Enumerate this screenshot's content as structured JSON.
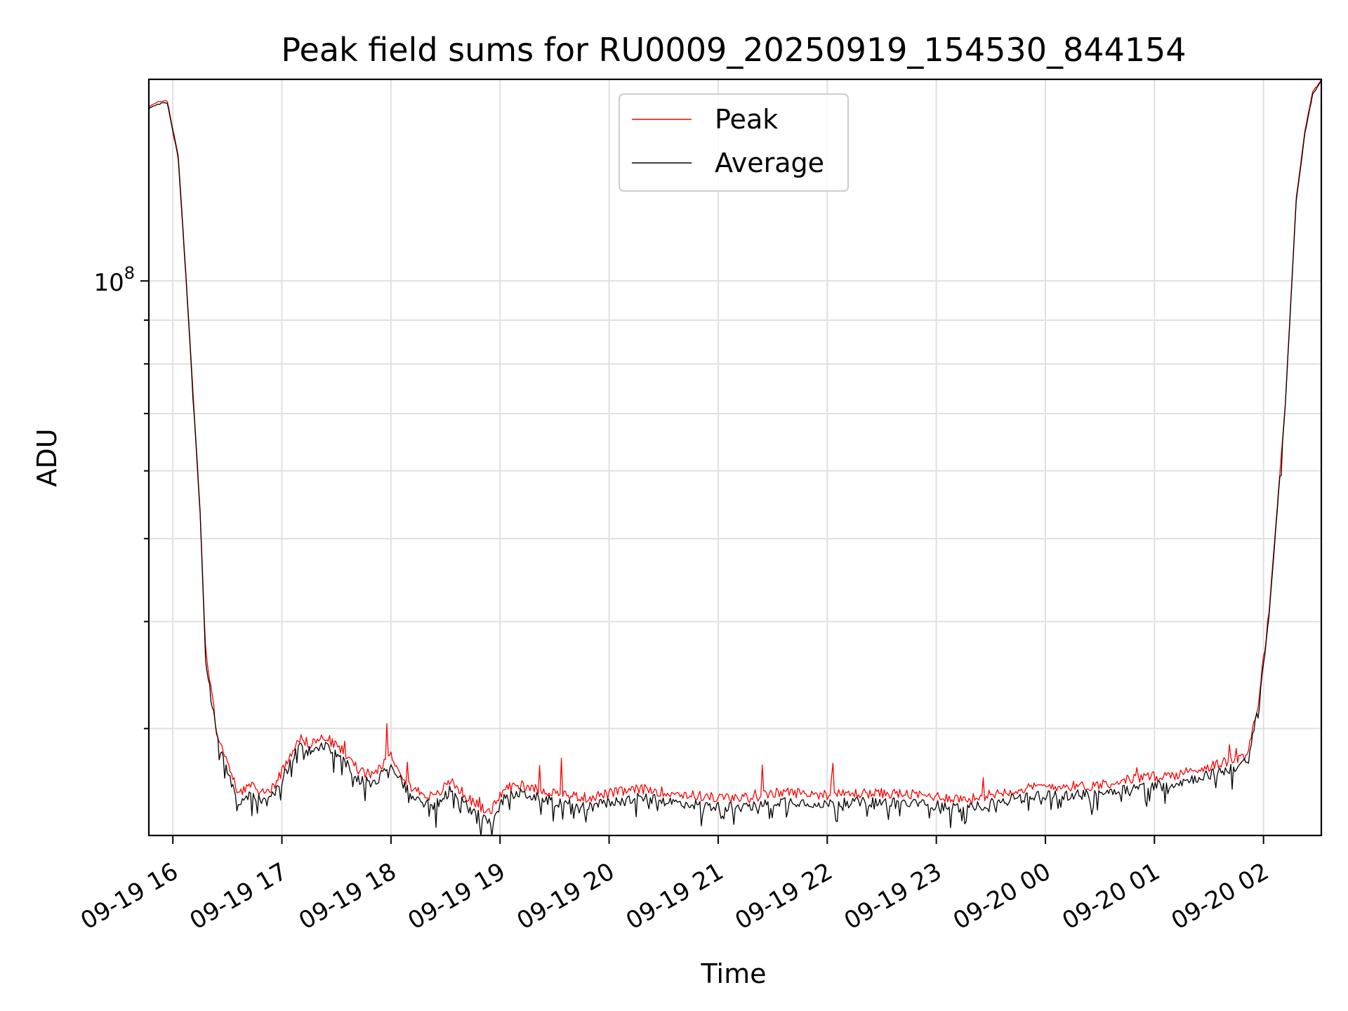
{
  "chart_data": {
    "type": "line",
    "title": "Peak field sums for RU0009_20250919_154530_844154",
    "xlabel": "Time",
    "ylabel": "ADU",
    "yscale": "log",
    "grid": true,
    "legend_position": "top-center",
    "x_range_hours": [
      -0.22,
      10.53
    ],
    "ylim": [
      22500000,
      172000000
    ],
    "x_ticks": [
      {
        "hour": 0,
        "label": "09-19 16"
      },
      {
        "hour": 1,
        "label": "09-19 17"
      },
      {
        "hour": 2,
        "label": "09-19 18"
      },
      {
        "hour": 3,
        "label": "09-19 19"
      },
      {
        "hour": 4,
        "label": "09-19 20"
      },
      {
        "hour": 5,
        "label": "09-19 21"
      },
      {
        "hour": 6,
        "label": "09-19 22"
      },
      {
        "hour": 7,
        "label": "09-19 23"
      },
      {
        "hour": 8,
        "label": "09-20 00"
      },
      {
        "hour": 9,
        "label": "09-20 01"
      },
      {
        "hour": 10,
        "label": "09-20 02"
      }
    ],
    "y_major_ticks": [
      {
        "value": 100000000,
        "base": "10",
        "exponent": "8"
      }
    ],
    "y_minor_ticks": [
      30000000,
      40000000,
      50000000,
      60000000,
      70000000,
      80000000,
      90000000
    ],
    "series": [
      {
        "name": "Peak",
        "color": "#ff0000",
        "x_hours": [
          -0.22,
          -0.12,
          -0.08,
          -0.05,
          0.05,
          0.12,
          0.25,
          0.3,
          0.4,
          0.5,
          0.6,
          0.7,
          0.85,
          0.95,
          1.05,
          1.15,
          1.25,
          1.4,
          1.55,
          1.7,
          1.85,
          2.0,
          2.1,
          2.2,
          2.4,
          2.55,
          2.7,
          2.9,
          3.05,
          3.2,
          3.4,
          3.6,
          3.8,
          4.0,
          4.3,
          4.6,
          5.0,
          5.3,
          5.6,
          6.0,
          6.3,
          6.6,
          7.0,
          7.3,
          7.6,
          8.0,
          8.4,
          8.8,
          9.2,
          9.5,
          9.7,
          9.85,
          9.95,
          10.05,
          10.2,
          10.3,
          10.38,
          10.45,
          10.53
        ],
        "y": [
          160000000,
          162000000,
          162500000,
          162000000,
          140000000,
          102000000,
          54000000,
          37000000,
          30000000,
          27200000,
          25300000,
          25700000,
          25200000,
          26000000,
          27500000,
          29300000,
          28800000,
          29300000,
          28300000,
          26800000,
          26400000,
          28000000,
          26600000,
          25500000,
          24900000,
          26100000,
          24900000,
          23900000,
          25600000,
          25800000,
          25400000,
          25100000,
          24900000,
          25200000,
          25500000,
          25200000,
          24900000,
          24900000,
          25300000,
          25100000,
          25200000,
          25200000,
          25000000,
          24800000,
          25300000,
          25700000,
          25700000,
          26200000,
          26500000,
          27100000,
          27500000,
          28000000,
          32000000,
          41000000,
          72000000,
          125000000,
          150000000,
          166000000,
          172000000
        ]
      },
      {
        "name": "Average",
        "color": "#000000",
        "x_hours": [
          -0.22,
          -0.12,
          -0.08,
          -0.05,
          0.05,
          0.12,
          0.25,
          0.3,
          0.4,
          0.5,
          0.6,
          0.7,
          0.85,
          0.95,
          1.05,
          1.15,
          1.25,
          1.4,
          1.55,
          1.7,
          1.85,
          2.0,
          2.1,
          2.2,
          2.4,
          2.55,
          2.7,
          2.9,
          3.05,
          3.2,
          3.4,
          3.6,
          3.8,
          4.0,
          4.3,
          4.6,
          5.0,
          5.3,
          5.6,
          6.0,
          6.3,
          6.6,
          7.0,
          7.3,
          7.6,
          8.0,
          8.4,
          8.8,
          9.2,
          9.5,
          9.7,
          9.85,
          9.95,
          10.05,
          10.2,
          10.3,
          10.38,
          10.45,
          10.53
        ],
        "y": [
          159000000,
          161000000,
          161500000,
          161000000,
          139000000,
          101000000,
          53500000,
          36500000,
          29500000,
          26600000,
          24700000,
          25100000,
          24600000,
          25400000,
          26900000,
          28700000,
          28200000,
          28700000,
          27700000,
          26200000,
          25800000,
          27400000,
          26000000,
          24900000,
          24300000,
          25500000,
          24300000,
          23300000,
          25000000,
          25200000,
          24800000,
          24500000,
          24300000,
          24600000,
          24900000,
          24600000,
          24300000,
          24300000,
          24700000,
          24500000,
          24600000,
          24600000,
          24400000,
          24200000,
          24700000,
          25100000,
          25100000,
          25600000,
          25900000,
          26500000,
          26900000,
          27400000,
          31500000,
          40500000,
          71500000,
          124000000,
          149000000,
          165000000,
          171500000
        ]
      }
    ]
  }
}
